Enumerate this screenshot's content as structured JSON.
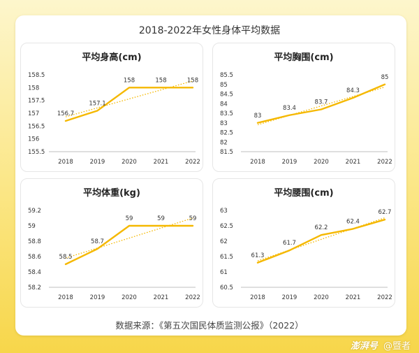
{
  "main_title": "2018-2022年女性身体平均数据",
  "source": "数据来源：《第五次国民体质监测公报》（2022）",
  "footer": {
    "logo": "澎湃号",
    "author": "@暨者"
  },
  "colors": {
    "line": "#f5b800",
    "trend": "#f5b800"
  },
  "chart_data": [
    {
      "type": "line",
      "title": "平均身高(cm)",
      "categories": [
        "2018",
        "2019",
        "2020",
        "2021",
        "2022"
      ],
      "series": [
        {
          "values": [
            156.7,
            157.1,
            158,
            158,
            158
          ]
        }
      ],
      "value_labels": [
        "156.7",
        "157.1",
        "158",
        "158",
        "158"
      ],
      "yticks": [
        "155.5",
        "156",
        "156.5",
        "157",
        "157.5",
        "158",
        "158.5"
      ],
      "ylim": [
        155.5,
        158.5
      ],
      "trendline": "linear",
      "grid": false
    },
    {
      "type": "line",
      "title": "平均胸围(cm)",
      "categories": [
        "2018",
        "2019",
        "2020",
        "2021",
        "2022"
      ],
      "series": [
        {
          "values": [
            83,
            83.4,
            83.7,
            84.3,
            85
          ]
        }
      ],
      "value_labels": [
        "83",
        "83.4",
        "83.7",
        "84.3",
        "85"
      ],
      "yticks": [
        "81.5",
        "82",
        "82.5",
        "83",
        "83.5",
        "84",
        "84.5",
        "85",
        "85.5"
      ],
      "ylim": [
        81.5,
        85.5
      ],
      "trendline": "linear",
      "grid": false
    },
    {
      "type": "line",
      "title": "平均体重(kg)",
      "categories": [
        "2018",
        "2019",
        "2020",
        "2021",
        "2022"
      ],
      "series": [
        {
          "values": [
            58.5,
            58.7,
            59,
            59,
            59
          ]
        }
      ],
      "value_labels": [
        "58.5",
        "58.7",
        "59",
        "59",
        "59"
      ],
      "yticks": [
        "58.2",
        "58.4",
        "58.6",
        "58.8",
        "59",
        "59.2"
      ],
      "ylim": [
        58.2,
        59.2
      ],
      "trendline": "linear",
      "grid": false
    },
    {
      "type": "line",
      "title": "平均腰围(cm)",
      "categories": [
        "2018",
        "2019",
        "2020",
        "2021",
        "2022"
      ],
      "series": [
        {
          "values": [
            61.3,
            61.7,
            62.2,
            62.4,
            62.7
          ]
        }
      ],
      "value_labels": [
        "61.3",
        "61.7",
        "62.2",
        "62.4",
        "62.7"
      ],
      "yticks": [
        "60.5",
        "61",
        "61.5",
        "62",
        "62.5",
        "63"
      ],
      "ylim": [
        60.5,
        63
      ],
      "trendline": "linear",
      "grid": false
    }
  ]
}
